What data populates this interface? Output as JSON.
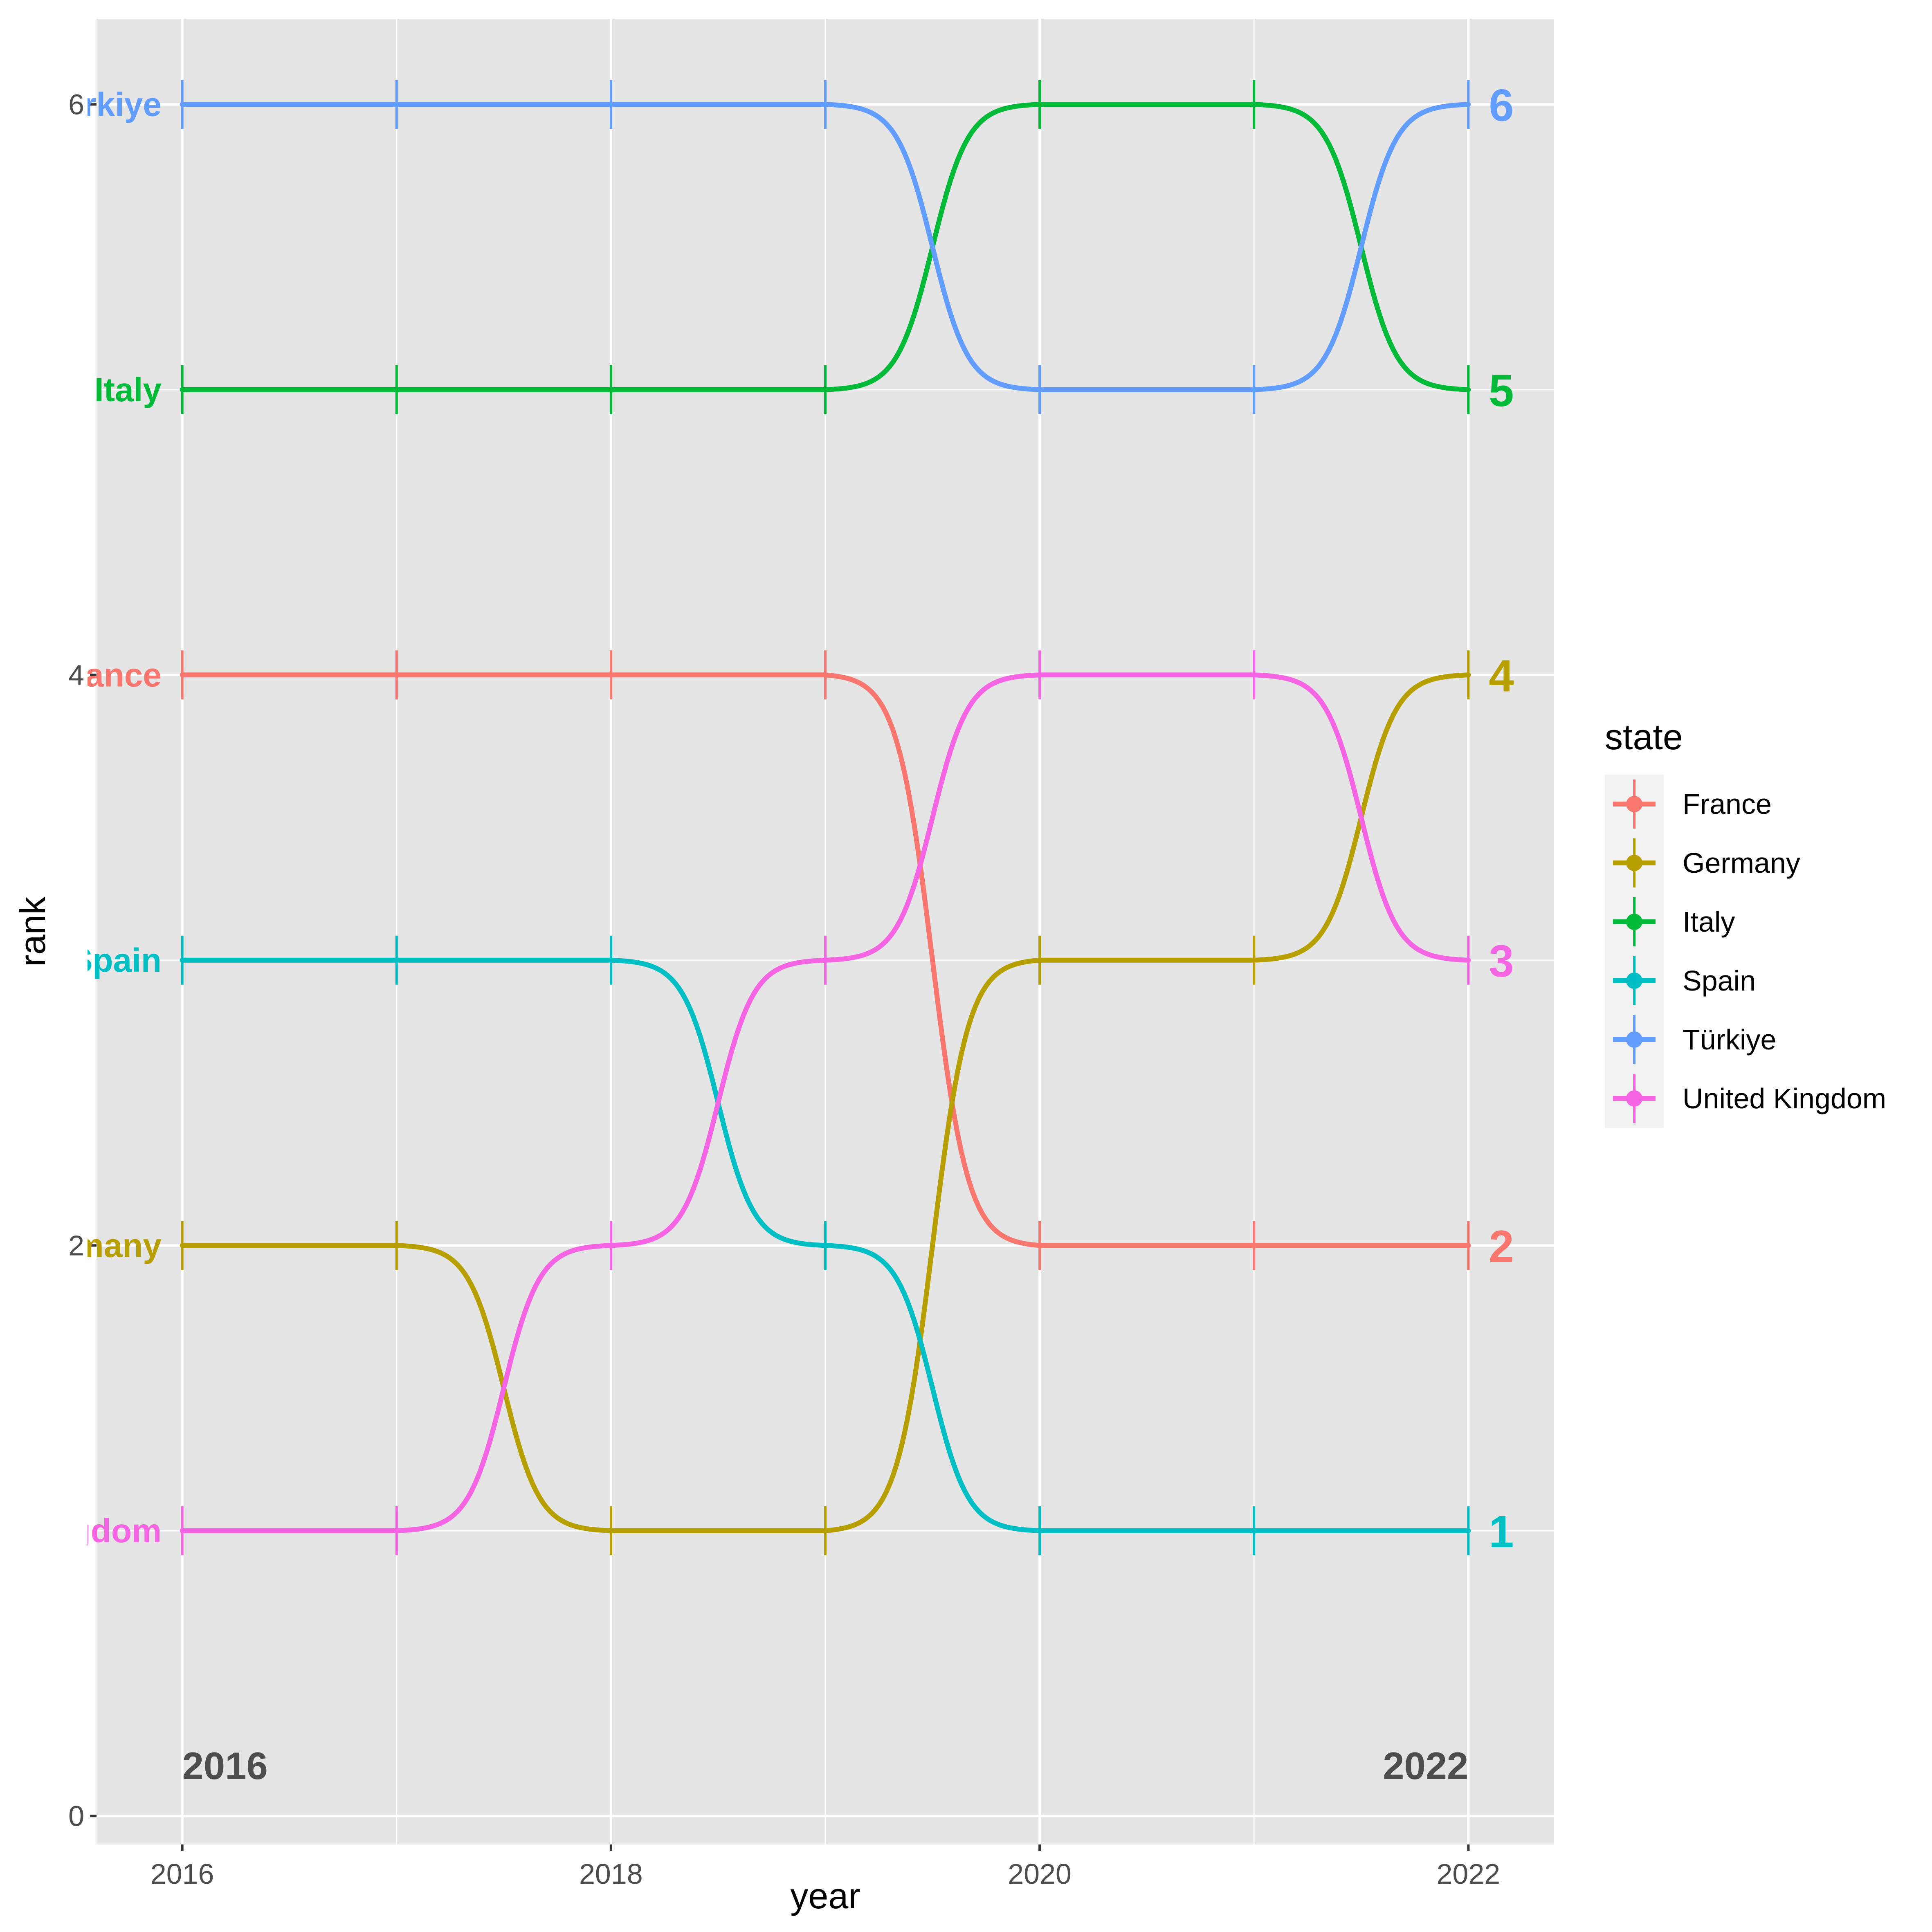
{
  "chart_data": {
    "type": "line",
    "subtype": "bump-chart",
    "xlabel": "year",
    "ylabel": "rank",
    "xlim": [
      2015.6,
      2022.4
    ],
    "ylim": [
      -0.1,
      6.3
    ],
    "x_ticks": [
      2016,
      2018,
      2020,
      2022
    ],
    "y_ticks": [
      0,
      2,
      4,
      6
    ],
    "background": "#E5E5E5",
    "grid": true,
    "legend": {
      "title": "state",
      "position": "right"
    },
    "x": [
      2016,
      2017,
      2018,
      2019,
      2020,
      2021,
      2022
    ],
    "series": [
      {
        "name": "France",
        "color": "#F8766D",
        "values": [
          4,
          4,
          4,
          4,
          2,
          2,
          2
        ],
        "start_label": "France"
      },
      {
        "name": "Germany",
        "color": "#B79F00",
        "values": [
          2,
          2,
          1,
          1,
          3,
          3,
          4
        ],
        "start_label": "Germany"
      },
      {
        "name": "Italy",
        "color": "#00BA38",
        "values": [
          5,
          5,
          5,
          5,
          6,
          6,
          5
        ],
        "start_label": "Italy"
      },
      {
        "name": "Spain",
        "color": "#00BFC4",
        "values": [
          3,
          3,
          3,
          2,
          1,
          1,
          1
        ],
        "start_label": "Spain"
      },
      {
        "name": "Türkiye",
        "color": "#619CFF",
        "values": [
          6,
          6,
          6,
          6,
          5,
          5,
          6
        ],
        "start_label": "Türkiye"
      },
      {
        "name": "United Kingdom",
        "color": "#F564E3",
        "values": [
          1,
          1,
          2,
          3,
          4,
          4,
          3
        ],
        "start_label": "United Kingdom"
      }
    ],
    "annotations": {
      "start_year": "2016",
      "end_year": "2022"
    }
  }
}
